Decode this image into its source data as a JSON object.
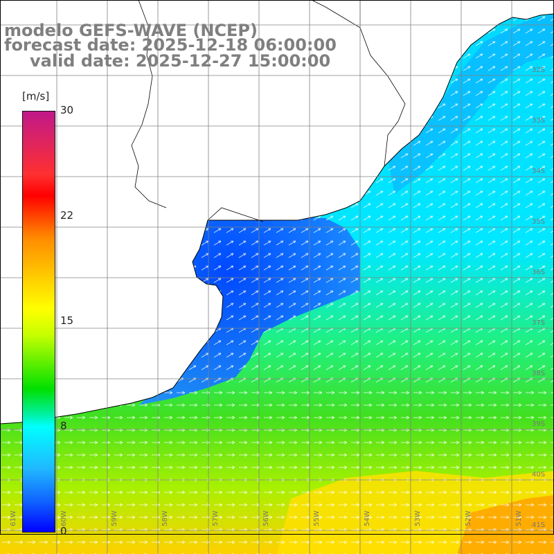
{
  "header": {
    "line1": "modelo GEFS-WAVE (NCEP)",
    "line2": "forecast date: 2025-12-18 06:00:00",
    "line3": "valid date: 2025-12-27 15:00:00"
  },
  "colorbar": {
    "unit": "[m/s]",
    "ticks": [
      "30",
      "22",
      "15",
      "8",
      "0"
    ],
    "colors": [
      "#c0188a",
      "#ff0000",
      "#ff8a00",
      "#ffff00",
      "#00e000",
      "#00ffff",
      "#0000ff"
    ]
  },
  "map": {
    "land_color": "#ffffff",
    "coastline_color": "#000000",
    "grid_color": "#808080",
    "lat_labels": [
      "32S",
      "33S",
      "34S",
      "35S",
      "36S",
      "37S",
      "38S",
      "39S",
      "40S",
      "41S"
    ],
    "lon_labels": [
      "61W",
      "60W",
      "59W",
      "58W",
      "57W",
      "56W",
      "55W",
      "54W",
      "53W",
      "52W",
      "51W"
    ]
  }
}
